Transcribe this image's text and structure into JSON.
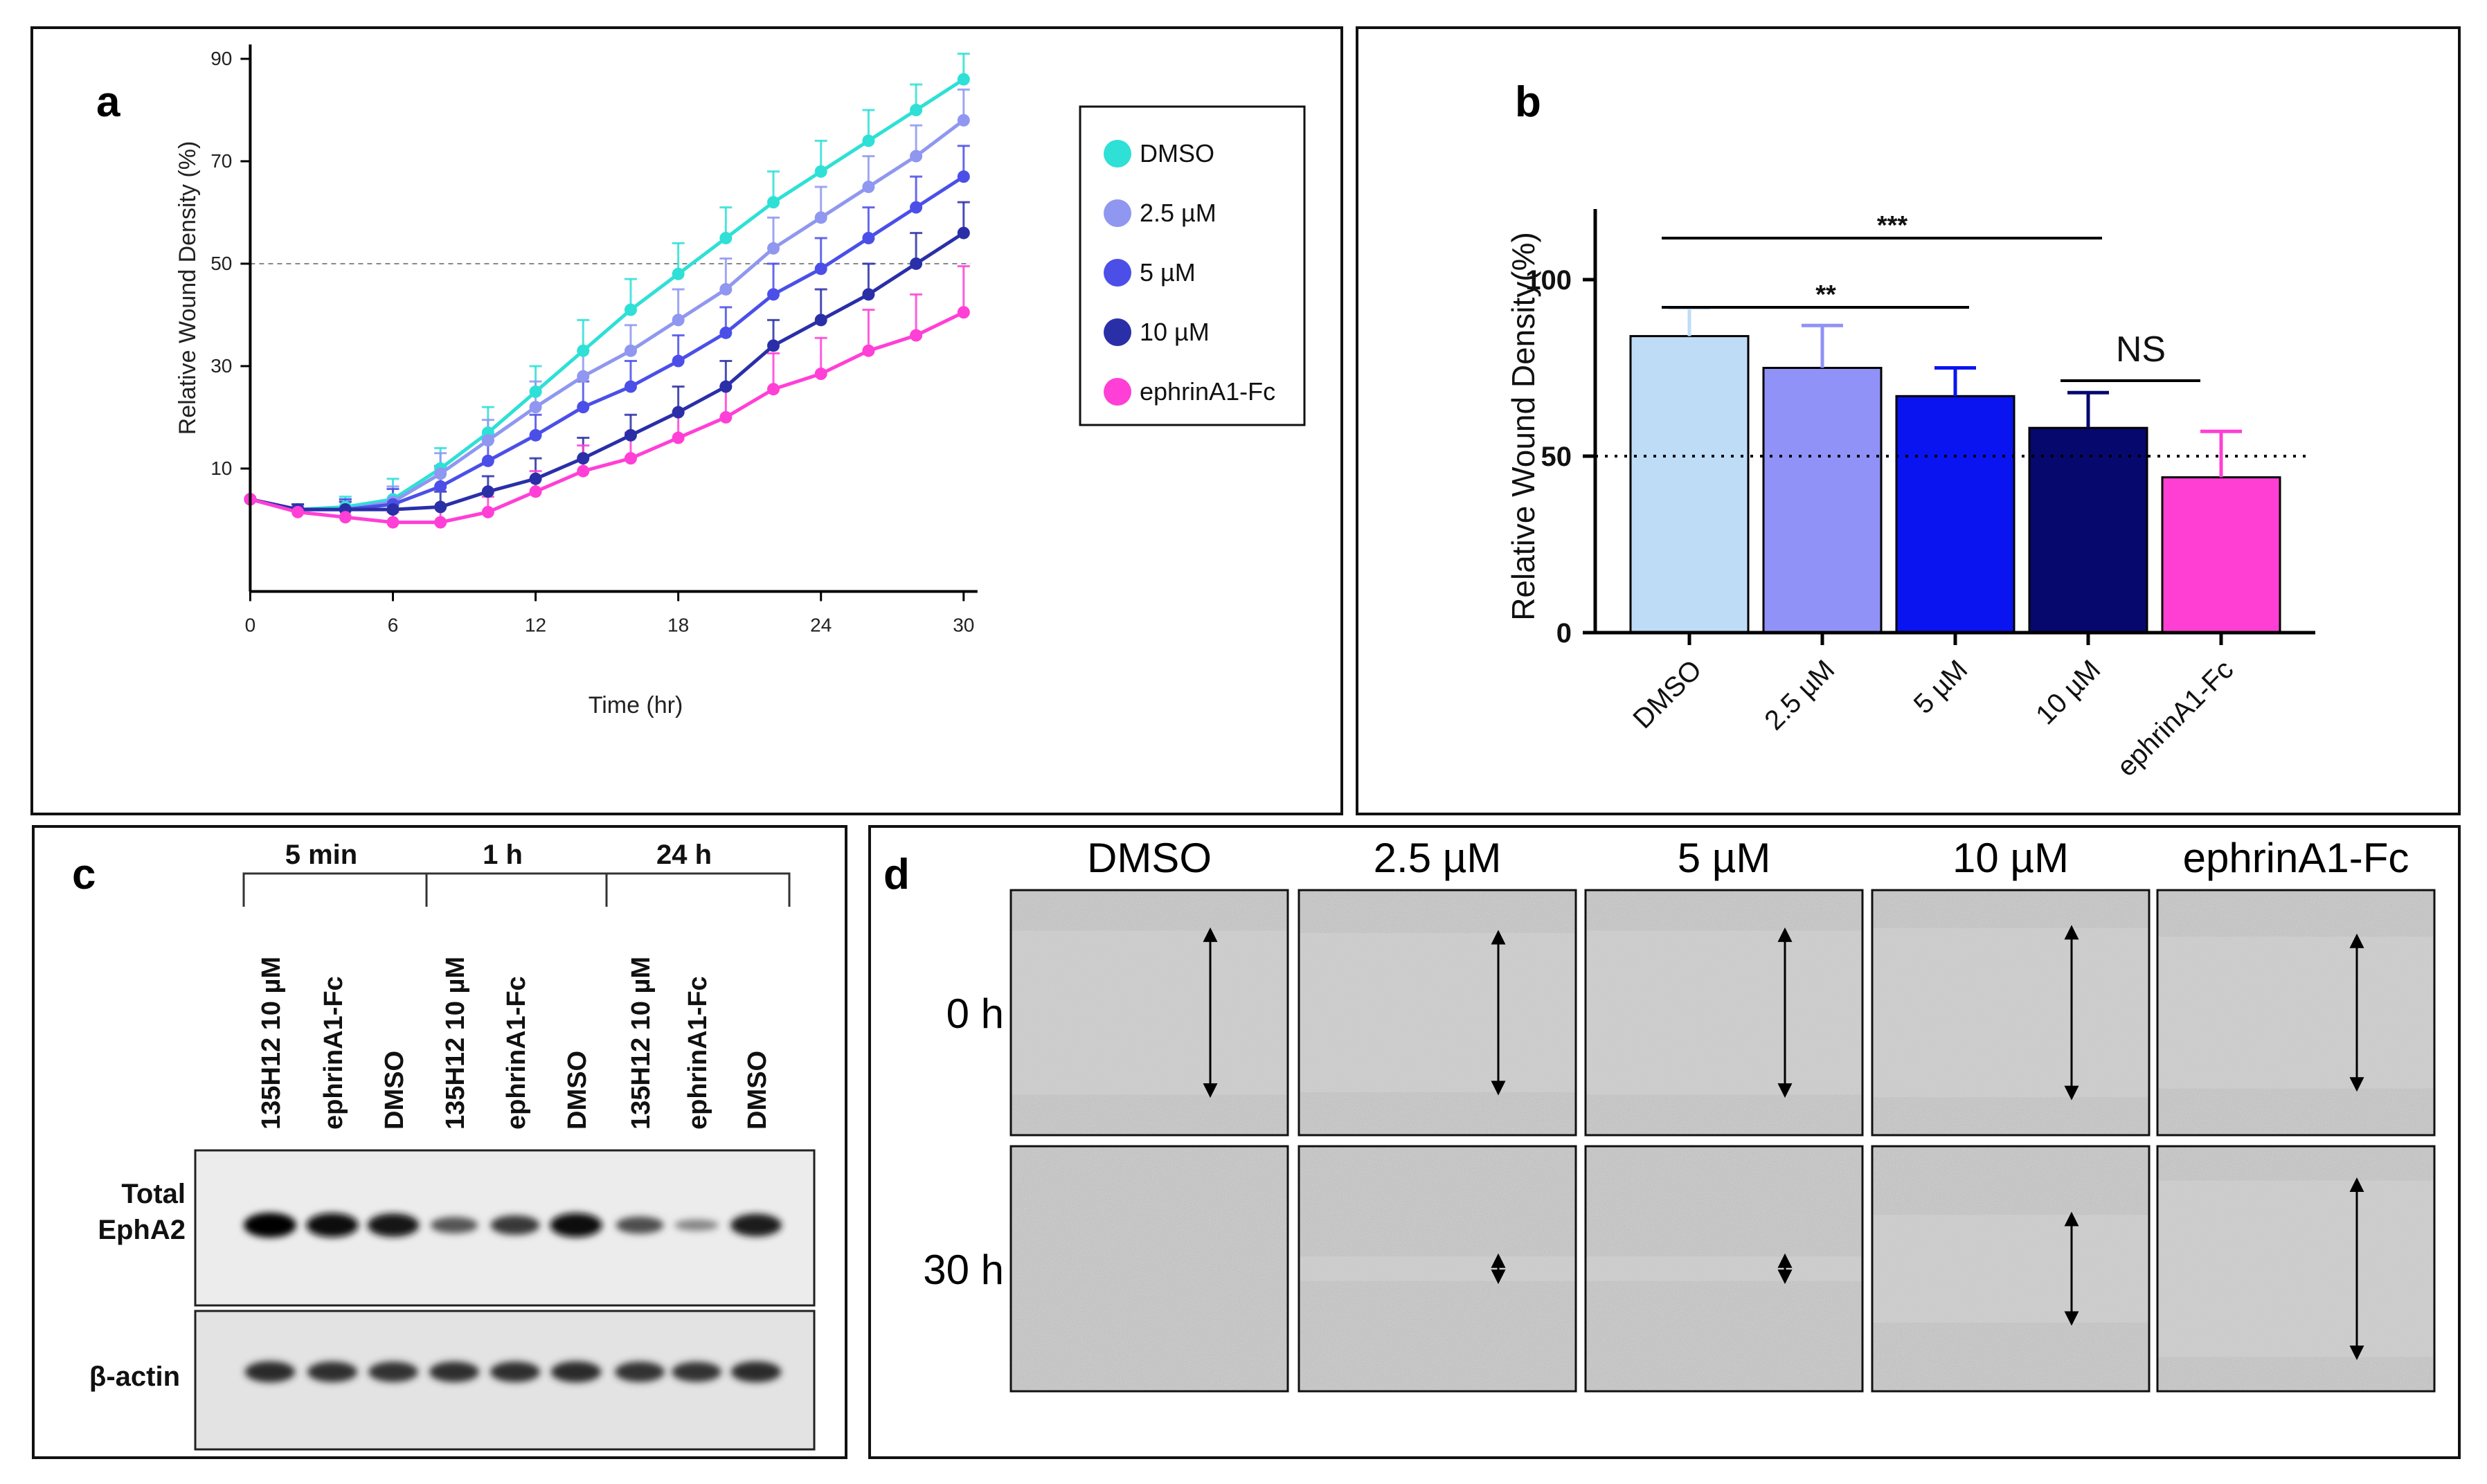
{
  "colors": {
    "dmso_a": "#2ee0d6",
    "um25_a": "#8f97f0",
    "um5_a": "#4b4fe8",
    "um10_a": "#2a2fa8",
    "ephrin_a": "#ff3fd6",
    "dmso_b": "#bfdcf7",
    "um25_b": "#9192f7",
    "um5_b": "#0a14f0",
    "um10_b": "#06086e",
    "ephrin_b": "#ff3fd4",
    "frame": "#111111",
    "reference_line": "#888888"
  },
  "panel_labels": {
    "a": "a",
    "b": "b",
    "c": "c",
    "d": "d"
  },
  "chart_data": [
    {
      "panel": "a",
      "type": "line",
      "title": "",
      "xlabel": "Time (hr)",
      "ylabel": "Relative Wound Density (%)",
      "xlim": [
        0,
        30
      ],
      "ylim": [
        -14,
        92
      ],
      "xticks": [
        0,
        6,
        12,
        18,
        24,
        30
      ],
      "yticks": [
        10,
        30,
        50,
        70,
        90
      ],
      "reference_line": {
        "y": 50,
        "style": "dashed"
      },
      "legend": {
        "position": "right",
        "entries": [
          "DMSO",
          "2.5 µM",
          "5 µM",
          "10 µM",
          "ephrinA1-Fc"
        ]
      },
      "x": [
        0,
        2,
        4,
        6,
        8,
        10,
        12,
        14,
        16,
        18,
        20,
        22,
        24,
        26,
        28,
        30
      ],
      "series": [
        {
          "name": "DMSO",
          "color_key": "dmso_a",
          "values": [
            4,
            2,
            2.5,
            4,
            10,
            17,
            25,
            33,
            41,
            48,
            55,
            62,
            68,
            74,
            80,
            86
          ],
          "errors": [
            0.5,
            1,
            2,
            4,
            4,
            5,
            5,
            6,
            6,
            6,
            6,
            6,
            6,
            6,
            5,
            5
          ]
        },
        {
          "name": "2.5 µM",
          "color_key": "um25_a",
          "values": [
            4,
            2,
            2,
            3.5,
            9,
            15.5,
            22,
            28,
            33,
            39,
            45,
            53,
            59,
            65,
            71,
            78
          ],
          "errors": [
            0.5,
            1,
            2,
            3,
            4,
            4,
            5,
            5,
            5,
            6,
            6,
            6,
            6,
            6,
            6,
            6
          ]
        },
        {
          "name": "5 µM",
          "color_key": "um5_a",
          "values": [
            4,
            2,
            2,
            3,
            6.5,
            11.5,
            16.5,
            22,
            26,
            31,
            36.5,
            44,
            49,
            55,
            61,
            67
          ],
          "errors": [
            0.5,
            1,
            2,
            3,
            4,
            4,
            4,
            5,
            5,
            5,
            5,
            6,
            6,
            6,
            6,
            6
          ]
        },
        {
          "name": "10 µM",
          "color_key": "um10_a",
          "values": [
            4,
            2,
            2,
            2,
            2.5,
            5.5,
            8,
            12,
            16.5,
            21,
            26,
            34,
            39,
            44,
            50,
            56
          ],
          "errors": [
            0.5,
            1,
            1.5,
            2,
            3,
            3,
            4,
            4,
            4,
            5,
            5,
            5,
            6,
            6,
            6,
            6
          ]
        },
        {
          "name": "ephrinA1-Fc",
          "color_key": "ephrin_a",
          "values": [
            4,
            1.5,
            0.5,
            -0.5,
            -0.5,
            1.5,
            5.5,
            9.5,
            12,
            16,
            20,
            25.5,
            28.5,
            33,
            36,
            40.5
          ],
          "errors": [
            0.5,
            1,
            1.5,
            2,
            3,
            3,
            4,
            5,
            5,
            5,
            6,
            7,
            7,
            8,
            8,
            9
          ]
        }
      ]
    },
    {
      "panel": "b",
      "type": "bar",
      "title": "",
      "xlabel": "",
      "ylabel": "Relative Wound Density(%)",
      "ylim": [
        0,
        120
      ],
      "yticks": [
        0,
        50,
        100
      ],
      "reference_line": {
        "y": 50,
        "style": "dotted"
      },
      "categories": [
        "DMSO",
        "2.5 µM",
        "5 µM",
        "10 µM",
        "ephrinA1-Fc"
      ],
      "values": [
        84,
        75,
        67,
        58,
        44
      ],
      "errors": [
        8,
        12,
        8,
        10,
        13
      ],
      "color_keys": [
        "dmso_b",
        "um25_b",
        "um5_b",
        "um10_b",
        "ephrin_b"
      ],
      "significance": [
        {
          "from": "DMSO",
          "to": "10 µM",
          "label": "***"
        },
        {
          "from": "DMSO",
          "to": "5 µM",
          "label": "**"
        },
        {
          "from": "10 µM",
          "to": "ephrinA1-Fc",
          "label": "NS"
        }
      ]
    }
  ],
  "blot": {
    "time_groups": [
      "5 min",
      "1 h",
      "24 h"
    ],
    "lanes": [
      "135H12 10 µM",
      "ephrinA1-Fc",
      "DMSO",
      "135H12 10 µM",
      "ephrinA1-Fc",
      "DMSO",
      "135H12 10 µM",
      "ephrinA1-Fc",
      "DMSO"
    ],
    "rows": [
      {
        "label_lines": [
          "Total",
          "EphA2"
        ],
        "intensities": [
          1.0,
          0.95,
          0.9,
          0.45,
          0.65,
          0.95,
          0.5,
          0.12,
          0.85
        ]
      },
      {
        "label_lines": [
          "β-actin"
        ],
        "intensities": [
          0.75,
          0.72,
          0.7,
          0.72,
          0.72,
          0.75,
          0.7,
          0.68,
          0.74
        ]
      }
    ]
  },
  "wound_images": {
    "columns": [
      "DMSO",
      "2.5 µM",
      "5 µM",
      "10 µM",
      "ephrinA1-Fc"
    ],
    "rows": [
      "0 h",
      "30 h"
    ],
    "relative_gap_widths": [
      [
        0.67,
        0.65,
        0.67,
        0.69,
        0.62
      ],
      [
        0.0,
        0.1,
        0.1,
        0.44,
        0.72
      ]
    ]
  }
}
